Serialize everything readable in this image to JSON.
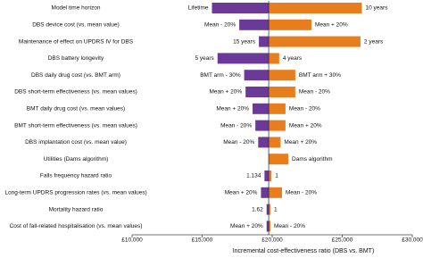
{
  "chart_data": {
    "type": "tornado",
    "xlabel": "Incremental  cost-effectiveness ratio (DBS vs. BMT)",
    "categories": [
      "Model time horizon",
      "DBS device cost (vs. mean value)",
      "Maintenance of effect on UPDRS IV for DBS",
      "DBS battery longevity",
      "DBS daily drug cost (vs. BMT arm)",
      "DBS short-term effectiveness (vs. mean values)",
      "BMT daily drug cost (vs. mean values)",
      "BMT short-term effectiveness (vs. mean values)",
      "DBS implantation cost (vs. mean value)",
      "Utilities (Dams algorithm)",
      "Falls frequency hazard ratio",
      "Long-term UPDRS progression rates (vs. mean values)",
      "Mortality hazard ratio",
      "Cost of fall-related hospitalisation (vs. mean values)"
    ],
    "base_value": 19750,
    "low": {
      "color": "#6b3a99",
      "values": [
        15700,
        17650,
        19050,
        16100,
        18000,
        18100,
        18600,
        18800,
        19000,
        null,
        19450,
        19200,
        19600,
        19600
      ],
      "labels": [
        "Lifetime",
        "Mean - 20%",
        "15 years",
        "5 years",
        "BMT arm - 30%",
        "Mean + 20%",
        "Mean + 20%",
        "Mean - 20%",
        "Mean - 20%",
        null,
        "1.134",
        "Mean + 20%",
        "1.62",
        "Mean + 20%"
      ]
    },
    "high": {
      "color": "#e87d1e",
      "values": [
        26400,
        22800,
        26300,
        20500,
        21650,
        21650,
        20950,
        20950,
        20600,
        21150,
        19950,
        20700,
        19870,
        19870
      ],
      "labels": [
        "10 years",
        "Mean + 20%",
        "2 years",
        "4 years",
        "BMT arm + 30%",
        "Mean - 20%",
        "Mean - 20%",
        "Mean + 20%",
        "Mean + 20%",
        "Dams algorithm",
        "1",
        "Mean - 20%",
        "1",
        "Mean - 20%"
      ]
    },
    "xlim": [
      10000,
      30000
    ],
    "xticks": [
      {
        "value": 10000,
        "label": "£10,000"
      },
      {
        "value": 15000,
        "label": "£15,000"
      },
      {
        "value": 20000,
        "label": "£20,000"
      },
      {
        "value": 25000,
        "label": "£25,000"
      },
      {
        "value": 30000,
        "label": "£30,000"
      }
    ]
  }
}
